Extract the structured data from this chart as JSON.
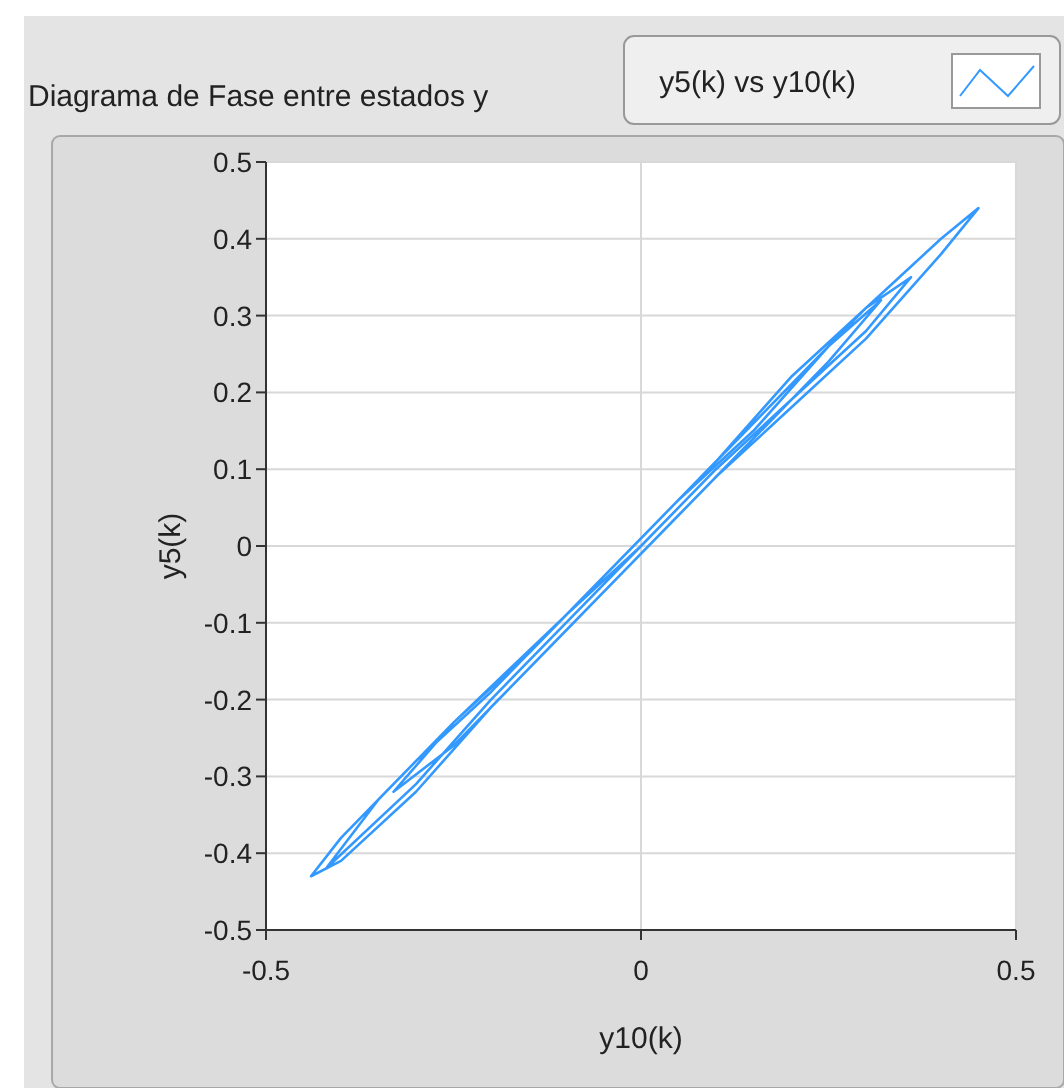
{
  "chart_data": {
    "type": "line",
    "title": "Diagrama de Fase entre estados y",
    "xlabel": "y10(k)",
    "ylabel": "y5(k)",
    "xlim": [
      -0.5,
      0.5
    ],
    "ylim": [
      -0.5,
      0.5
    ],
    "xticks": [
      -0.5,
      0,
      0.5
    ],
    "yticks": [
      -0.5,
      -0.4,
      -0.3,
      -0.2,
      -0.1,
      0,
      0.1,
      0.2,
      0.3,
      0.4,
      0.5
    ],
    "grid": true,
    "legend": "top right",
    "marker": "none",
    "line_style": "solid",
    "series": [
      {
        "name": "y5(k) vs y10(k)",
        "color": "#3399ff",
        "x": [
          0,
          0.1,
          0.2,
          0.3,
          0.4,
          0.45,
          0.4,
          0.3,
          0.2,
          0.1,
          0,
          -0.1,
          -0.2,
          -0.3,
          -0.4,
          -0.44,
          -0.4,
          -0.3,
          -0.2,
          -0.1,
          0,
          0.1,
          0.2,
          0.3,
          0.36,
          0.3,
          0.2,
          0.1,
          0,
          -0.1,
          -0.2,
          -0.3,
          -0.42,
          -0.35,
          -0.25,
          -0.15,
          -0.05,
          0.05,
          0.15,
          0.25,
          0.32,
          0.25,
          0.15,
          0.05,
          -0.05,
          -0.15,
          -0.25,
          -0.33,
          -0.25,
          -0.1,
          0
        ],
        "values": [
          0.01,
          0.11,
          0.21,
          0.31,
          0.4,
          0.44,
          0.38,
          0.27,
          0.18,
          0.09,
          -0.01,
          -0.11,
          -0.21,
          -0.32,
          -0.41,
          -0.43,
          -0.38,
          -0.28,
          -0.19,
          -0.09,
          0.01,
          0.11,
          0.22,
          0.31,
          0.35,
          0.28,
          0.19,
          0.1,
          0,
          -0.1,
          -0.2,
          -0.31,
          -0.42,
          -0.33,
          -0.23,
          -0.14,
          -0.04,
          0.06,
          0.15,
          0.26,
          0.32,
          0.24,
          0.14,
          0.04,
          -0.06,
          -0.16,
          -0.26,
          -0.32,
          -0.23,
          -0.09,
          0
        ]
      }
    ]
  }
}
